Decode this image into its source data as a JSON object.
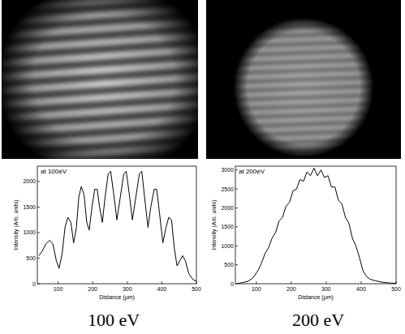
{
  "chart_data": [
    {
      "type": "line",
      "title": "100 eV",
      "annotation": "at 100eV",
      "x_label": "Distance (µm)",
      "y_label": "Intensity (Arb. units)",
      "x": [
        45,
        55,
        65,
        75,
        85,
        95,
        103,
        112,
        120,
        128,
        137,
        145,
        153,
        160,
        167,
        175,
        183,
        190,
        198,
        206,
        213,
        220,
        228,
        236,
        245,
        252,
        260,
        270,
        280,
        290,
        297,
        305,
        315,
        325,
        335,
        342,
        350,
        360,
        368,
        378,
        385,
        393,
        403,
        412,
        420,
        428,
        436,
        444,
        452,
        460,
        468,
        478,
        490,
        500
      ],
      "values": [
        550,
        650,
        780,
        850,
        780,
        450,
        300,
        600,
        1100,
        1300,
        1200,
        800,
        1100,
        1700,
        1900,
        1750,
        1200,
        1050,
        1500,
        1850,
        1850,
        1500,
        1200,
        1700,
        2150,
        2200,
        1800,
        1250,
        1700,
        2150,
        2200,
        1800,
        1250,
        1700,
        2150,
        2200,
        1700,
        1100,
        1500,
        1850,
        1850,
        1400,
        800,
        1100,
        1300,
        1250,
        700,
        350,
        450,
        550,
        450,
        200,
        80,
        50
      ],
      "color": "#000000",
      "xlim": [
        40,
        500
      ],
      "xticks": [
        100,
        200,
        300,
        400,
        500
      ],
      "ylim": [
        0,
        2300
      ],
      "yticks": [
        0,
        500,
        1000,
        1500,
        2000
      ],
      "grid": false
    },
    {
      "type": "line",
      "title": "200 eV",
      "annotation": "at 200eV",
      "x_label": "Distance (µm)",
      "y_label": "Intensity (Arb. units)",
      "x": [
        45,
        60,
        75,
        90,
        105,
        115,
        125,
        135,
        145,
        155,
        165,
        175,
        185,
        195,
        205,
        215,
        225,
        235,
        245,
        255,
        265,
        275,
        285,
        295,
        305,
        315,
        325,
        335,
        345,
        355,
        365,
        375,
        385,
        395,
        405,
        415,
        425,
        440,
        460,
        480,
        500
      ],
      "values": [
        0,
        30,
        60,
        150,
        350,
        550,
        800,
        950,
        1200,
        1350,
        1650,
        1750,
        2050,
        2150,
        2450,
        2500,
        2750,
        2700,
        2950,
        2850,
        3050,
        2850,
        3000,
        2800,
        2850,
        2550,
        2550,
        2200,
        2100,
        1750,
        1600,
        1200,
        1000,
        700,
        350,
        200,
        120,
        80,
        40,
        20,
        10
      ],
      "color": "#000000",
      "xlim": [
        40,
        500
      ],
      "xticks": [
        100,
        200,
        300,
        400,
        500
      ],
      "ylim": [
        0,
        3100
      ],
      "yticks": [
        0,
        500,
        1000,
        1500,
        2000,
        2500,
        3000
      ],
      "grid": false
    }
  ]
}
